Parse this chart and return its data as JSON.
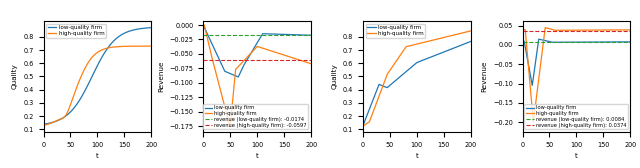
{
  "subplot1_left": {
    "xlabel": "t",
    "ylabel": "Quality",
    "xlim": [
      0,
      200
    ],
    "ylim": [
      0.08,
      0.92
    ],
    "yticks": [
      0.1,
      0.2,
      0.3,
      0.4,
      0.5,
      0.6,
      0.7,
      0.8
    ],
    "xticks": [
      0,
      50,
      100,
      150,
      200
    ],
    "legend": [
      "low-quality firm",
      "high-quality firm"
    ],
    "line_colors": [
      "#1f77b4",
      "#ff7f0e"
    ]
  },
  "subplot1_right": {
    "xlabel": "t",
    "ylabel": "Revenue",
    "xlim": [
      0,
      200
    ],
    "ylim": [
      -0.185,
      0.007
    ],
    "yticks": [
      0.0,
      -0.025,
      -0.05,
      -0.075,
      -0.1,
      -0.125,
      -0.15,
      -0.175
    ],
    "xticks": [
      0,
      50,
      100,
      150,
      200
    ],
    "legend": [
      "low-quality firm",
      "high-quality firm",
      "revenue (low-quality firm): -0.0174",
      "revenue (high-quality firm): -0.0597"
    ],
    "line_colors": [
      "#1f77b4",
      "#ff7f0e",
      "#2ca02c",
      "#d62728"
    ],
    "hline_low": -0.0174,
    "hline_high": -0.0597
  },
  "subplot2_left": {
    "xlabel": "t",
    "ylabel": "Quality",
    "xlim": [
      0,
      200
    ],
    "ylim": [
      0.08,
      0.92
    ],
    "yticks": [
      0.1,
      0.2,
      0.3,
      0.4,
      0.5,
      0.6,
      0.7,
      0.8
    ],
    "xticks": [
      0,
      50,
      100,
      150,
      200
    ],
    "legend": [
      "low-quality firm",
      "high-quality firm"
    ],
    "line_colors": [
      "#1f77b4",
      "#ff7f0e"
    ]
  },
  "subplot2_right": {
    "xlabel": "t",
    "ylabel": "Revenue",
    "xlim": [
      0,
      200
    ],
    "ylim": [
      -0.225,
      0.062
    ],
    "yticks": [
      0.05,
      0.0,
      -0.05,
      -0.1,
      -0.15,
      -0.2
    ],
    "xticks": [
      0,
      50,
      100,
      150,
      200
    ],
    "legend": [
      "low-quality firm",
      "high-quality firm",
      "revenue (low-quality firm): 0.0084",
      "revenue (high-quality firm): 0.0374"
    ],
    "line_colors": [
      "#1f77b4",
      "#ff7f0e",
      "#2ca02c",
      "#d62728"
    ],
    "hline_low": 0.0084,
    "hline_high": 0.0374
  }
}
